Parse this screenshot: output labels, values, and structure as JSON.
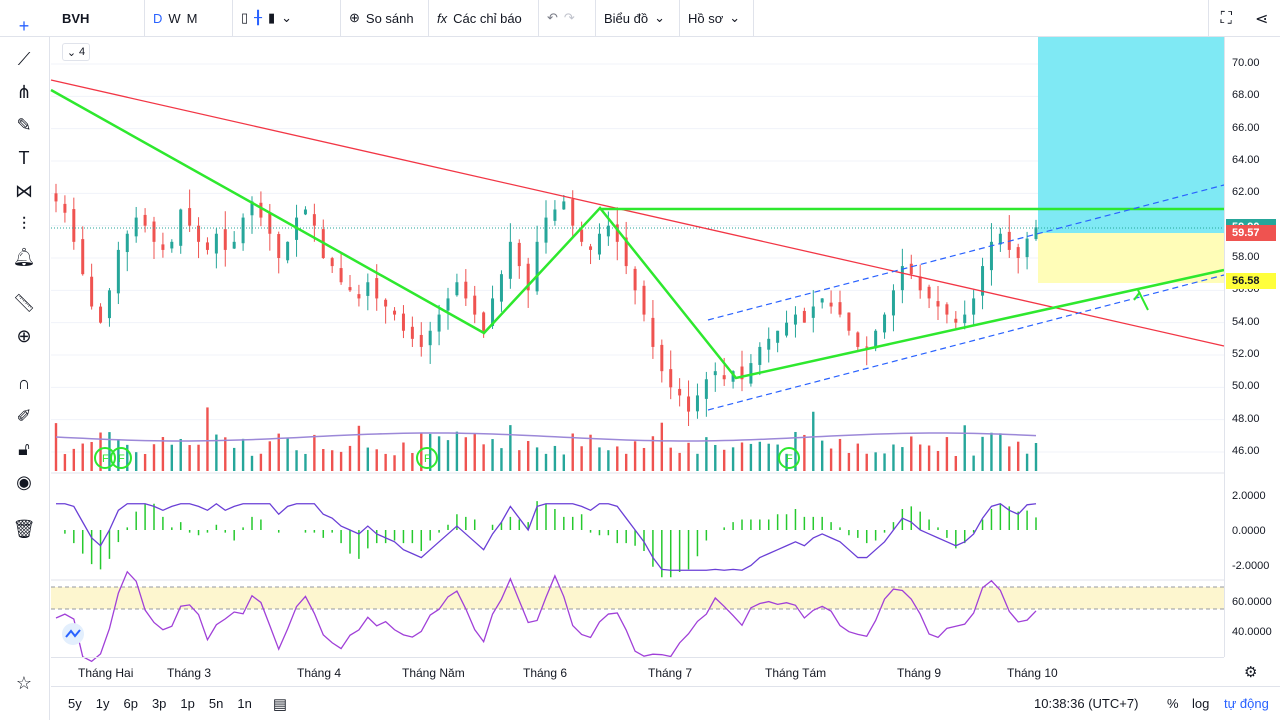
{
  "toolbar": {
    "symbol": "BVH",
    "intervals": [
      "D",
      "W",
      "M"
    ],
    "compare": "So sánh",
    "indicators": "Các chỉ báo",
    "chart_menu": "Biểu đồ",
    "profile_menu": "Hồ sơ"
  },
  "legend_toggle": "4",
  "bottom": {
    "ranges": [
      "5y",
      "1y",
      "6p",
      "3p",
      "1p",
      "5n",
      "1n"
    ],
    "clock": "10:38:36 (UTC+7)",
    "percent": "%",
    "log": "log",
    "auto": "tự động"
  },
  "colors": {
    "up": "#26a69a",
    "down": "#ef5350",
    "green": "#2ee82e",
    "red_line": "#f23645",
    "blue_dash": "#2962ff",
    "cyan": "#7fe9f4",
    "yellow": "#fffdb8"
  },
  "chart_data": {
    "type": "candlestick",
    "x_ticks": [
      "Tháng Hai",
      "Tháng 3",
      "Tháng 4",
      "Tháng Năm",
      "Tháng 6",
      "Tháng 7",
      "Tháng Tám",
      "Tháng 9",
      "Tháng 10"
    ],
    "price_ticks": [
      "70.00",
      "68.00",
      "66.00",
      "64.00",
      "62.00",
      "60.00",
      "58.00",
      "56.00",
      "54.00",
      "52.00",
      "50.00",
      "48.00",
      "46.00"
    ],
    "ylim": [
      45,
      72
    ],
    "price_labels": [
      {
        "value": "59.90",
        "color": "#26a69a"
      },
      {
        "value": "59.57",
        "color": "#ef5350"
      },
      {
        "value": "56.58",
        "color": "#ffff3b"
      }
    ],
    "close_series": [
      61.5,
      60.8,
      59.0,
      57.0,
      55.0,
      54.0,
      56.0,
      58.5,
      59.5,
      60.5,
      60.0,
      59.0,
      58.5,
      59.0,
      61.0,
      60.0,
      59.0,
      58.5,
      59.5,
      58.5,
      59.0,
      60.5,
      61.5,
      60.5,
      59.5,
      58.0,
      59.0,
      60.5,
      61.0,
      60.0,
      58.0,
      57.5,
      56.5,
      56.0,
      55.5,
      56.5,
      55.5,
      55.0,
      54.5,
      53.5,
      53.0,
      52.5,
      53.5,
      54.5,
      55.5,
      56.5,
      55.5,
      54.5,
      53.5,
      55.5,
      57.0,
      59.0,
      57.5,
      56.0,
      59.0,
      60.5,
      61.0,
      61.5,
      60.0,
      59.0,
      58.5,
      59.5,
      60.0,
      59.0,
      57.5,
      56.0,
      54.5,
      52.5,
      51.0,
      50.0,
      49.5,
      48.5,
      49.5,
      50.5,
      51.0,
      50.5,
      51.0,
      50.5,
      51.5,
      52.5,
      53.0,
      53.5,
      54.0,
      54.5,
      54.0,
      55.0,
      55.5,
      55.0,
      54.5,
      53.5,
      52.5,
      52.5,
      53.5,
      54.5,
      56.0,
      57.5,
      57.0,
      56.0,
      55.5,
      55.0,
      54.5,
      54.0,
      54.5,
      55.5,
      57.5,
      59.0,
      59.5,
      58.5,
      58.0,
      59.2,
      59.9
    ],
    "oscillator_ticks": [
      "2.0000",
      "0.0000",
      "-2.0000"
    ],
    "rsi_ticks": [
      "60.0000",
      "40.0000"
    ]
  },
  "markers": [
    "F",
    "F",
    "F",
    "F"
  ]
}
